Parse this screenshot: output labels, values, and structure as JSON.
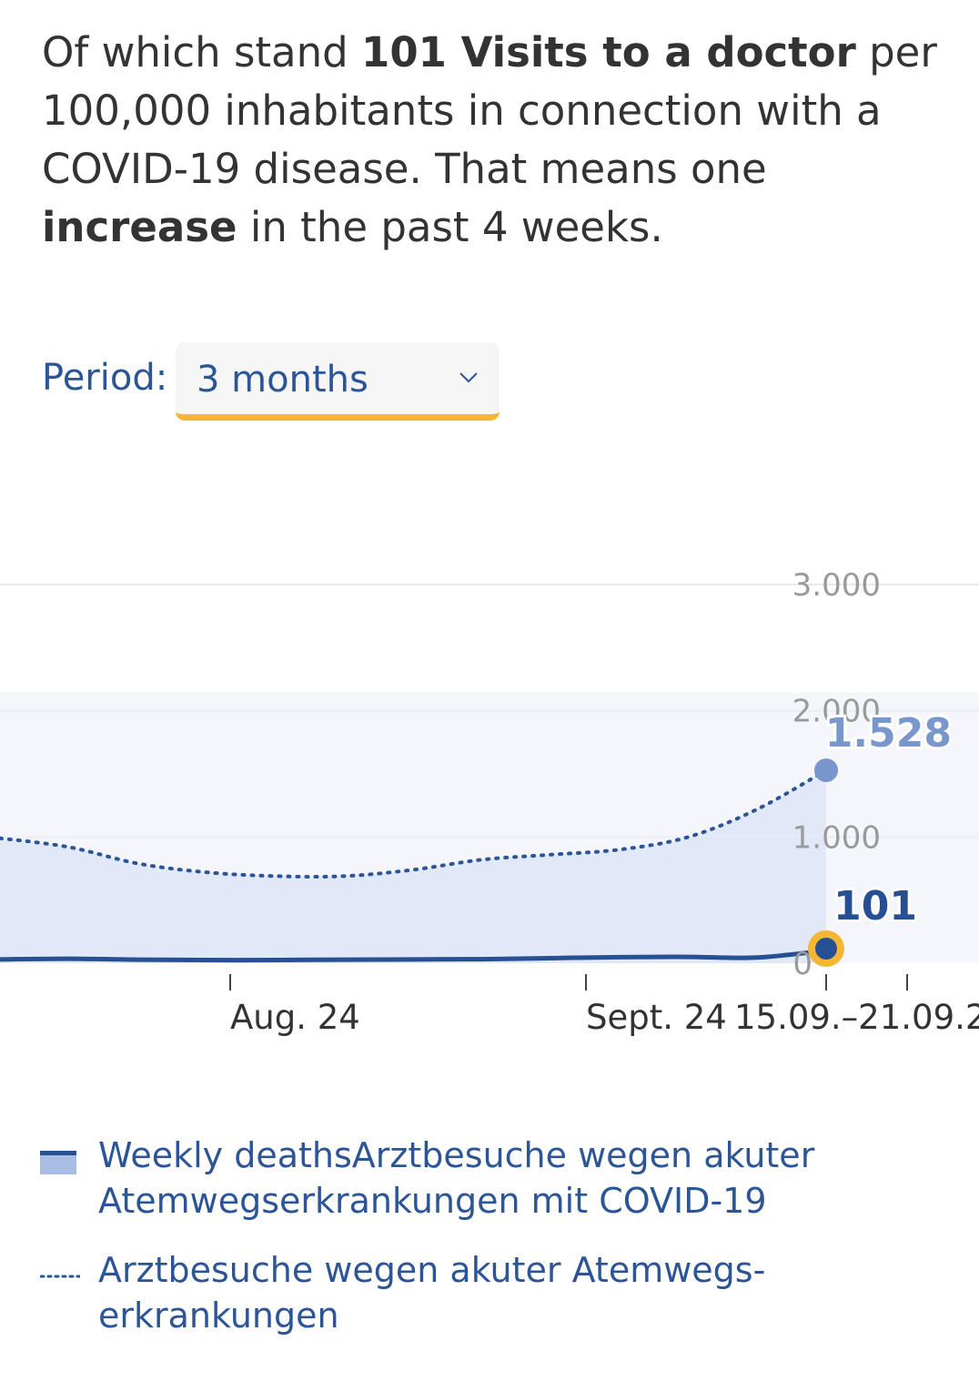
{
  "summary": {
    "t1": "Of which stand ",
    "b1": "101 Visits to a doctor",
    "t2": " per 100,000 inhabitants in connection with a COVID-19 disease. That means one ",
    "b2": "increase",
    "t3": " in the past 4 weeks."
  },
  "period": {
    "label": "Period:",
    "selected": "3 months"
  },
  "icons": {
    "dropdown": "chevron-down-icon"
  },
  "colors": {
    "covid_line": "#274f93",
    "area_fill": "#e1e9f8",
    "dotted_line": "#2c5597",
    "marker_light": "#7a97cd",
    "marker_ring": "#f3b733",
    "accent": "#f3b733",
    "grid": "#e6e6e6",
    "tick_label": "#9a9a9a"
  },
  "chart_data": {
    "type": "area",
    "y_ticks": [
      "0",
      "1.000",
      "2.000",
      "3.000"
    ],
    "ylim": [
      0,
      3000
    ],
    "x_tick_labels": [
      "Aug. 24",
      "Sept. 24",
      "15.09.–21.09.2"
    ],
    "series": [
      {
        "name": "Weekly deathsArztbesuche wegen akuter Atemwegserkrankungen mit COVID-19",
        "style": "area",
        "values": [
          30,
          35,
          28,
          25,
          25,
          28,
          30,
          32,
          40,
          48,
          50,
          45,
          101
        ]
      },
      {
        "name": "Arztbesuche wegen akuter Atemwegserkrankungen",
        "style": "dotted",
        "values": [
          990,
          920,
          790,
          720,
          690,
          690,
          740,
          820,
          860,
          900,
          1000,
          1220,
          1528
        ]
      }
    ],
    "end_labels": {
      "covid": "101",
      "ari": "1.528"
    },
    "grid": true,
    "legend_position": "bottom"
  },
  "legend": {
    "item1": "Weekly deathsArztbesuche wegen akuter Atemwegserkrankungen mit COVID-19",
    "item2": "Arztbesuche wegen akuter Atemwegs-erkrankungen"
  }
}
